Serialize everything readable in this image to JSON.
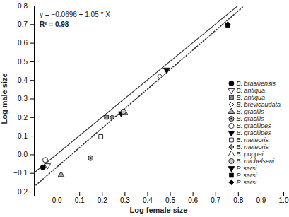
{
  "chart_data": {
    "type": "scatter",
    "xlabel": "Log female size",
    "ylabel": "Log male size",
    "annotations": [
      "y = −0.0696 + 1.05 * X",
      "R² = 0.98"
    ],
    "xlim": [
      -0.1,
      1.0
    ],
    "ylim": [
      -0.2,
      0.8
    ],
    "xticks": [
      {
        "value": 0.0,
        "label": "0.0"
      },
      0.1,
      0.2,
      0.3,
      0.4,
      0.5,
      0.6,
      0.7,
      0.8,
      0.9,
      {
        "value": 1.0,
        "label": "1.0"
      }
    ],
    "yticks": [
      {
        "value": -0.2,
        "label": "−0.2"
      },
      {
        "value": -0.1,
        "label": "−0.1"
      },
      {
        "value": 0.0,
        "label": "0.0"
      },
      0.1,
      0.2,
      0.3,
      0.4,
      0.5,
      0.6,
      0.7,
      0.8
    ],
    "grid": false,
    "legend": "right",
    "reference_lines": [
      {
        "slope": 1.0,
        "intercept": 0.0,
        "line_style": "solid"
      },
      {
        "slope": 1.05,
        "intercept": -0.0696,
        "line_style": "dotted"
      }
    ],
    "series": [
      {
        "name": "B. brasiliensis",
        "color": "black",
        "marker": "circle",
        "x": [
          -0.06
        ],
        "values": [
          -0.07
        ]
      },
      {
        "name": "B. antiqua",
        "color": "white",
        "marker": "triangle-down",
        "x": [
          -0.04
        ],
        "values": [
          -0.06
        ]
      },
      {
        "name": "B. antiqua",
        "color": "#888888",
        "marker": "square",
        "x": [
          0.22
        ],
        "values": [
          0.2
        ]
      },
      {
        "name": "B. brevicaudata",
        "color": "white",
        "marker": "diamond",
        "x": [
          0.455
        ],
        "values": [
          0.42
        ]
      },
      {
        "name": "B. gracilis",
        "color": "#aaaaaa",
        "marker": "triangle-up",
        "x": [
          0.02
        ],
        "values": [
          -0.11
        ]
      },
      {
        "name": "B. gracilis",
        "color": "#aaaaaa",
        "marker": "circle-dot",
        "x": [
          0.15
        ],
        "values": [
          -0.02
        ]
      },
      {
        "name": "B. gracilipes",
        "color": "white",
        "marker": "circle",
        "x": [
          -0.05
        ],
        "values": [
          -0.03
        ]
      },
      {
        "name": "B. gracilipes",
        "color": "black",
        "marker": "triangle-down",
        "x": [
          0.285
        ],
        "values": [
          0.22
        ]
      },
      {
        "name": "B. meteoris",
        "color": "white",
        "marker": "square",
        "x": [
          0.195
        ],
        "values": [
          0.095
        ]
      },
      {
        "name": "B. meteoris",
        "color": "#888888",
        "marker": "diamond",
        "x": [
          0.245
        ],
        "values": [
          0.2
        ]
      },
      {
        "name": "B. poppei",
        "color": "white",
        "marker": "triangle-up",
        "x": [
          0.3
        ],
        "values": [
          0.225
        ]
      },
      {
        "name": "B. michelseni",
        "color": "#cccccc",
        "marker": "circle",
        "x": [
          0.295
        ],
        "values": [
          0.23
        ]
      },
      {
        "name": "P. sarsi",
        "color": "black",
        "marker": "triangle-down",
        "x": [
          0.485
        ],
        "values": [
          0.455
        ]
      },
      {
        "name": "P. sarsi",
        "color": "black",
        "marker": "square",
        "x": [
          0.755
        ],
        "values": [
          0.695
        ]
      },
      {
        "name": "P. sarsi",
        "color": "black",
        "marker": "diamond",
        "x": [
          0.755
        ],
        "values": [
          0.7
        ]
      }
    ]
  }
}
